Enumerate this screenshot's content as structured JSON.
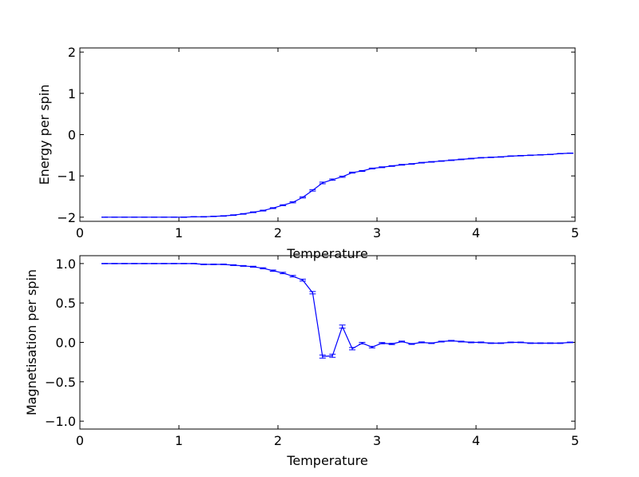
{
  "chart_data": [
    {
      "type": "line",
      "title": "",
      "xlabel": "Temperature",
      "ylabel": "Energy per spin",
      "xlim": [
        0,
        5
      ],
      "ylim": [
        -2.1,
        2.1
      ],
      "xticks": [
        "0",
        "1",
        "2",
        "3",
        "4",
        "5"
      ],
      "yticks": [
        "−2",
        "−1",
        "0",
        "1",
        "2"
      ],
      "grid": false,
      "line_color": "#0000ff",
      "error_bars": true,
      "series": [
        {
          "x": [
            0.25,
            0.35,
            0.45,
            0.55,
            0.65,
            0.75,
            0.85,
            0.95,
            1.05,
            1.15,
            1.25,
            1.35,
            1.45,
            1.55,
            1.65,
            1.75,
            1.85,
            1.95,
            2.05,
            2.15,
            2.25,
            2.35,
            2.45,
            2.55,
            2.65,
            2.75,
            2.85,
            2.95,
            3.05,
            3.15,
            3.25,
            3.35,
            3.45,
            3.55,
            3.65,
            3.75,
            3.85,
            3.95,
            4.05,
            4.15,
            4.25,
            4.35,
            4.45,
            4.55,
            4.65,
            4.75,
            4.85,
            4.95
          ],
          "y": [
            -2.0,
            -2.0,
            -2.0,
            -2.0,
            -2.0,
            -2.0,
            -2.0,
            -2.0,
            -2.0,
            -1.99,
            -1.99,
            -1.98,
            -1.97,
            -1.95,
            -1.92,
            -1.88,
            -1.84,
            -1.78,
            -1.71,
            -1.64,
            -1.52,
            -1.35,
            -1.17,
            -1.09,
            -1.02,
            -0.92,
            -0.88,
            -0.82,
            -0.79,
            -0.76,
            -0.73,
            -0.71,
            -0.68,
            -0.66,
            -0.64,
            -0.62,
            -0.6,
            -0.58,
            -0.56,
            -0.55,
            -0.54,
            -0.52,
            -0.51,
            -0.5,
            -0.49,
            -0.48,
            -0.46,
            -0.45
          ],
          "err": [
            0.004,
            0.004,
            0.004,
            0.004,
            0.004,
            0.004,
            0.004,
            0.004,
            0.005,
            0.005,
            0.006,
            0.006,
            0.007,
            0.008,
            0.008,
            0.009,
            0.01,
            0.011,
            0.012,
            0.013,
            0.015,
            0.018,
            0.02,
            0.016,
            0.014,
            0.012,
            0.011,
            0.01,
            0.01,
            0.009,
            0.009,
            0.008,
            0.008,
            0.008,
            0.007,
            0.007,
            0.007,
            0.007,
            0.006,
            0.006,
            0.006,
            0.006,
            0.006,
            0.006,
            0.005,
            0.005,
            0.005,
            0.005
          ]
        }
      ]
    },
    {
      "type": "line",
      "title": "",
      "xlabel": "Temperature",
      "ylabel": "Magnetisation per spin",
      "xlim": [
        0,
        5
      ],
      "ylim": [
        -1.1,
        1.1
      ],
      "xticks": [
        "0",
        "1",
        "2",
        "3",
        "4",
        "5"
      ],
      "yticks": [
        "−1.0",
        "−0.5",
        "0.0",
        "0.5",
        "1.0"
      ],
      "grid": false,
      "line_color": "#0000ff",
      "error_bars": true,
      "series": [
        {
          "x": [
            0.25,
            0.35,
            0.45,
            0.55,
            0.65,
            0.75,
            0.85,
            0.95,
            1.05,
            1.15,
            1.25,
            1.35,
            1.45,
            1.55,
            1.65,
            1.75,
            1.85,
            1.95,
            2.05,
            2.15,
            2.25,
            2.35,
            2.45,
            2.55,
            2.65,
            2.75,
            2.85,
            2.95,
            3.05,
            3.15,
            3.25,
            3.35,
            3.45,
            3.55,
            3.65,
            3.75,
            3.85,
            3.95,
            4.05,
            4.15,
            4.25,
            4.35,
            4.45,
            4.55,
            4.65,
            4.75,
            4.85,
            4.95
          ],
          "y": [
            1.0,
            1.0,
            1.0,
            1.0,
            1.0,
            1.0,
            1.0,
            1.0,
            1.0,
            1.0,
            0.99,
            0.99,
            0.99,
            0.98,
            0.97,
            0.96,
            0.94,
            0.91,
            0.88,
            0.84,
            0.79,
            0.63,
            -0.18,
            -0.17,
            0.2,
            -0.08,
            -0.01,
            -0.06,
            -0.01,
            -0.02,
            0.01,
            -0.02,
            0.0,
            -0.01,
            0.01,
            0.02,
            0.01,
            0.0,
            0.0,
            -0.01,
            -0.01,
            0.0,
            0.0,
            -0.01,
            -0.01,
            -0.01,
            -0.01,
            0.0
          ],
          "err": [
            0.003,
            0.003,
            0.003,
            0.003,
            0.003,
            0.003,
            0.003,
            0.003,
            0.003,
            0.003,
            0.004,
            0.004,
            0.004,
            0.005,
            0.005,
            0.006,
            0.007,
            0.008,
            0.009,
            0.01,
            0.012,
            0.015,
            0.02,
            0.02,
            0.02,
            0.015,
            0.01,
            0.01,
            0.008,
            0.008,
            0.006,
            0.006,
            0.006,
            0.005,
            0.005,
            0.005,
            0.005,
            0.005,
            0.005,
            0.004,
            0.004,
            0.004,
            0.004,
            0.004,
            0.004,
            0.004,
            0.004,
            0.004
          ]
        }
      ]
    }
  ]
}
